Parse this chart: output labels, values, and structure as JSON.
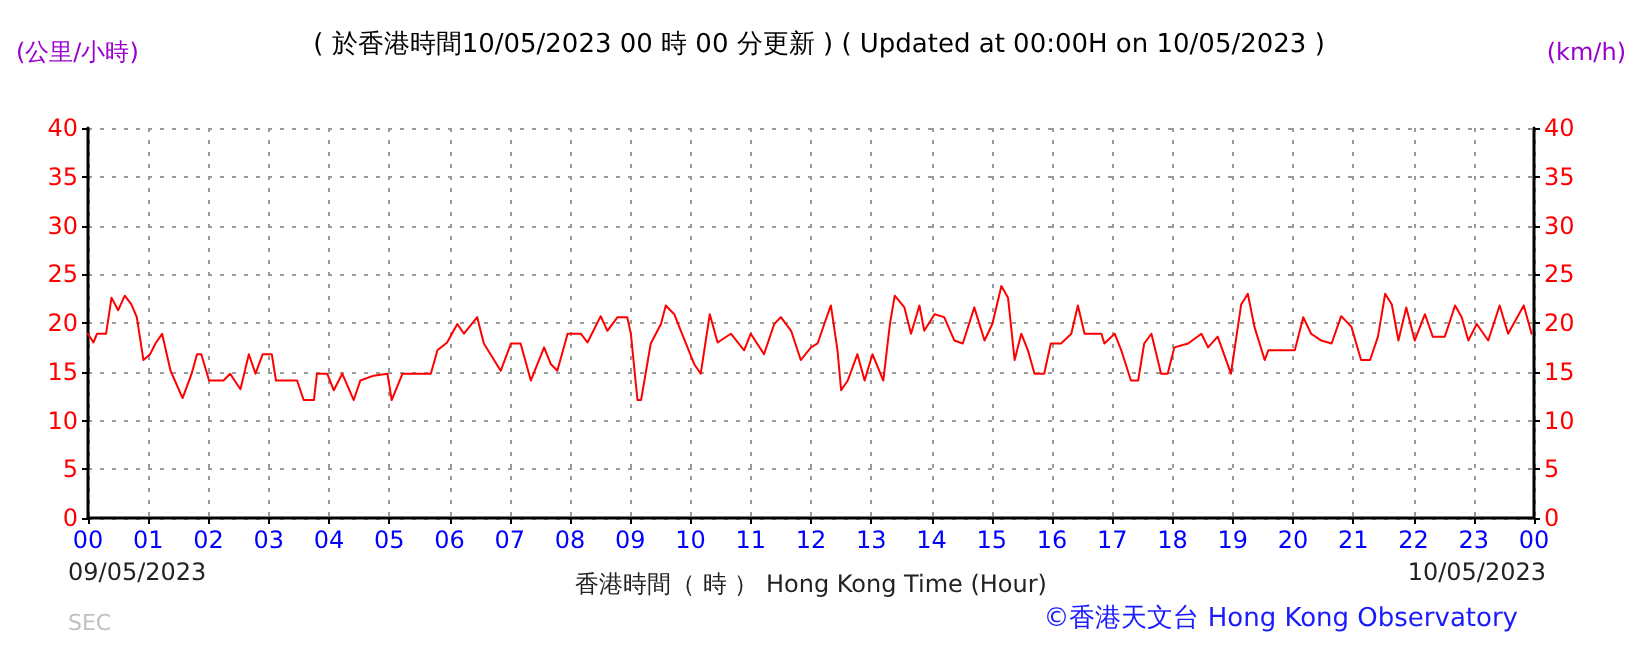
{
  "chart_data": {
    "type": "line",
    "title": "( 於香港時間10/05/2023 00 時 00 分更新 ) ( Updated at 00:00H on 10/05/2023 )",
    "xlabel": "香港時間（ 時 ） Hong Kong Time (Hour)",
    "ylabel": "(公里/小時)",
    "y2label": "(km/h)",
    "annotations": [
      "09/05/2023",
      "10/05/2023",
      "SEC",
      "©香港天文台 Hong Kong Observatory"
    ],
    "xlim": [
      0,
      24
    ],
    "xticks": [
      {
        "value": 0,
        "label": "00"
      },
      {
        "value": 1,
        "label": "01"
      },
      {
        "value": 2,
        "label": "02"
      },
      {
        "value": 3,
        "label": "03"
      },
      {
        "value": 4,
        "label": "04"
      },
      {
        "value": 5,
        "label": "05"
      },
      {
        "value": 6,
        "label": "06"
      },
      {
        "value": 7,
        "label": "07"
      },
      {
        "value": 8,
        "label": "08"
      },
      {
        "value": 9,
        "label": "09"
      },
      {
        "value": 10,
        "label": "10"
      },
      {
        "value": 11,
        "label": "11"
      },
      {
        "value": 12,
        "label": "12"
      },
      {
        "value": 13,
        "label": "13"
      },
      {
        "value": 14,
        "label": "14"
      },
      {
        "value": 15,
        "label": "15"
      },
      {
        "value": 16,
        "label": "16"
      },
      {
        "value": 17,
        "label": "17"
      },
      {
        "value": 18,
        "label": "18"
      },
      {
        "value": 19,
        "label": "19"
      },
      {
        "value": 20,
        "label": "20"
      },
      {
        "value": 21,
        "label": "21"
      },
      {
        "value": 22,
        "label": "22"
      },
      {
        "value": 23,
        "label": "23"
      },
      {
        "value": 24,
        "label": "00"
      }
    ],
    "ylim": [
      0,
      40
    ],
    "yticks": [
      0,
      5,
      10,
      15,
      20,
      25,
      30,
      35,
      40
    ],
    "y2lim": [
      0,
      40
    ],
    "y2ticks": [
      0,
      5,
      10,
      15,
      20,
      25,
      30,
      35,
      40
    ],
    "grid": true,
    "line_style": "solid",
    "series": [
      {
        "color": "#ff0000",
        "x": [
          0,
          0.09,
          0.15,
          0.3,
          0.39,
          0.5,
          0.61,
          0.72,
          0.81,
          0.92,
          1.03,
          1.12,
          1.23,
          1.37,
          1.57,
          1.72,
          1.81,
          1.88,
          2.01,
          2.25,
          2.36,
          2.53,
          2.67,
          2.78,
          2.9,
          3.05,
          3.12,
          3.47,
          3.58,
          3.75,
          3.8,
          3.97,
          4.08,
          4.22,
          4.41,
          4.52,
          4.74,
          4.97,
          5.04,
          5.22,
          5.69,
          5.8,
          5.96,
          6.13,
          6.24,
          6.46,
          6.57,
          6.85,
          7.02,
          7.18,
          7.35,
          7.57,
          7.68,
          7.79,
          7.96,
          8.18,
          8.29,
          8.51,
          8.62,
          8.79,
          8.95,
          9.01,
          9.12,
          9.18,
          9.34,
          9.51,
          9.59,
          9.73,
          9.84,
          10.06,
          10.17,
          10.32,
          10.45,
          10.67,
          10.89,
          11.0,
          11.22,
          11.39,
          11.5,
          11.67,
          11.83,
          12.0,
          12.11,
          12.22,
          12.33,
          12.44,
          12.5,
          12.61,
          12.77,
          12.89,
          13.02,
          13.2,
          13.31,
          13.39,
          13.55,
          13.66,
          13.8,
          13.88,
          14.05,
          14.21,
          14.38,
          14.52,
          14.71,
          14.88,
          15.01,
          15.16,
          15.27,
          15.38,
          15.49,
          15.6,
          15.71,
          15.87,
          15.98,
          16.15,
          16.32,
          16.43,
          16.54,
          16.82,
          16.87,
          17.04,
          17.15,
          17.31,
          17.43,
          17.53,
          17.65,
          17.81,
          17.92,
          18.03,
          18.26,
          18.48,
          18.59,
          18.75,
          18.97,
          19.14,
          19.25,
          19.36,
          19.53,
          19.59,
          20.03,
          20.17,
          20.3,
          20.47,
          20.64,
          20.8,
          20.97,
          21.13,
          21.28,
          21.41,
          21.53,
          21.64,
          21.75,
          21.88,
          22.02,
          22.19,
          22.32,
          22.52,
          22.69,
          22.8,
          22.91,
          23.05,
          23.24,
          23.43,
          23.57,
          23.83,
          23.96
        ],
        "values": [
          18.9,
          18.0,
          18.9,
          18.9,
          22.6,
          21.3,
          22.8,
          21.9,
          20.6,
          16.2,
          16.8,
          17.9,
          18.9,
          15.1,
          12.3,
          14.8,
          16.8,
          16.8,
          14.1,
          14.1,
          14.8,
          13.2,
          16.8,
          14.8,
          16.8,
          16.8,
          14.1,
          14.1,
          12.1,
          12.1,
          14.8,
          14.8,
          13.1,
          14.8,
          12.1,
          14.1,
          14.6,
          14.8,
          12.1,
          14.8,
          14.8,
          17.2,
          18.0,
          19.9,
          18.9,
          20.6,
          17.9,
          15.1,
          17.9,
          17.9,
          14.1,
          17.5,
          15.8,
          15.1,
          18.9,
          18.9,
          18.0,
          20.7,
          19.2,
          20.6,
          20.6,
          18.9,
          12.1,
          12.1,
          17.9,
          19.9,
          21.8,
          20.9,
          19.2,
          15.8,
          14.8,
          20.9,
          18.0,
          18.9,
          17.2,
          18.9,
          16.8,
          19.9,
          20.6,
          19.2,
          16.2,
          17.5,
          17.9,
          19.9,
          21.8,
          17.2,
          13.1,
          14.1,
          16.8,
          14.1,
          16.8,
          14.1,
          19.9,
          22.8,
          21.6,
          18.9,
          21.8,
          19.2,
          20.9,
          20.6,
          18.2,
          17.9,
          21.6,
          18.2,
          19.9,
          23.8,
          22.6,
          16.2,
          18.9,
          17.2,
          14.8,
          14.8,
          17.9,
          17.9,
          18.9,
          21.8,
          18.9,
          18.9,
          17.9,
          18.9,
          17.2,
          14.1,
          14.1,
          17.9,
          18.9,
          14.8,
          14.8,
          17.5,
          17.9,
          18.9,
          17.5,
          18.6,
          14.8,
          21.9,
          23.0,
          19.6,
          16.2,
          17.2,
          17.2,
          20.6,
          18.9,
          18.2,
          17.9,
          20.7,
          19.6,
          16.2,
          16.2,
          18.6,
          23.0,
          21.9,
          18.2,
          21.6,
          18.2,
          20.9,
          18.6,
          18.6,
          21.8,
          20.6,
          18.2,
          19.9,
          18.2,
          21.8,
          18.9,
          21.8,
          18.9
        ]
      }
    ]
  }
}
